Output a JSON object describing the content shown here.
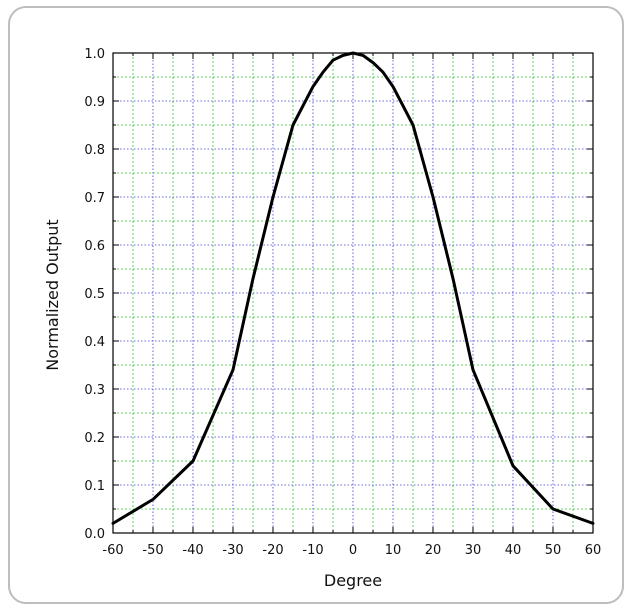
{
  "chart_data": {
    "type": "line",
    "title": "",
    "xlabel": "Degree",
    "ylabel": "Normalized Output",
    "xlim": [
      -60,
      60
    ],
    "ylim": [
      0,
      1.0
    ],
    "x_ticks": [
      -60,
      -50,
      -40,
      -30,
      -20,
      -10,
      0,
      10,
      20,
      30,
      40,
      50,
      60
    ],
    "y_ticks": [
      "0.0",
      "0.1",
      "0.2",
      "0.3",
      "0.4",
      "0.5",
      "0.6",
      "0.7",
      "0.8",
      "0.9",
      "1.0"
    ],
    "grid": "on",
    "colors": {
      "line": "#000000",
      "major_grid": "#3a3ad6",
      "minor_grid": "#33cc33",
      "frame": "#bdbdbd"
    },
    "series": [
      {
        "x": [
          -60,
          -50,
          -40,
          -30,
          -25,
          -20,
          -15,
          -10,
          -7.5,
          -5,
          -2.5,
          0,
          2.5,
          5,
          7.5,
          10,
          15,
          20,
          25,
          30,
          40,
          50,
          60
        ],
        "y": [
          0.02,
          0.07,
          0.15,
          0.34,
          0.53,
          0.7,
          0.85,
          0.93,
          0.96,
          0.985,
          0.995,
          1.0,
          0.995,
          0.98,
          0.96,
          0.93,
          0.85,
          0.7,
          0.53,
          0.34,
          0.14,
          0.05,
          0.02
        ]
      }
    ]
  }
}
